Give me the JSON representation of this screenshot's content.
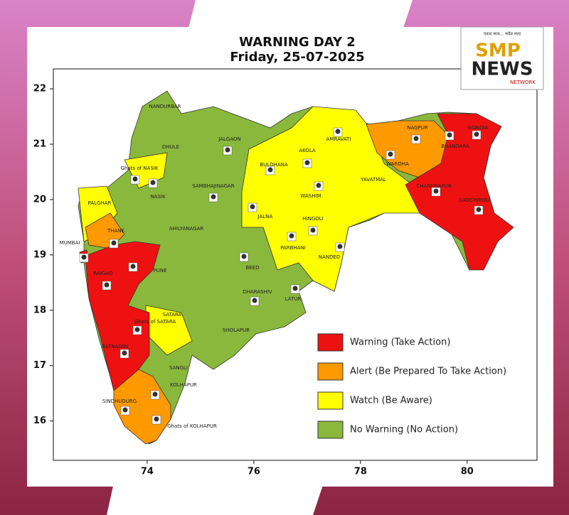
{
  "map": {
    "title": "WARNING DAY 2",
    "subtitle": "Friday, 25-07-2025",
    "xlim": [
      72.24,
      81.31
    ],
    "ylim": [
      15.29,
      22.36
    ],
    "xticks": [
      74,
      76,
      78,
      80
    ],
    "yticks": [
      16,
      17,
      18,
      19,
      20,
      21,
      22
    ],
    "legend": [
      {
        "label": "Warning (Take Action)",
        "color": "#ee1111"
      },
      {
        "label": "Alert (Be Prepared To Take Action)",
        "color": "#ff9900"
      },
      {
        "label": "Watch (Be Aware)",
        "color": "#ffff00"
      },
      {
        "label": "No Warning (No Action)",
        "color": "#8ab83c"
      }
    ],
    "districts": [
      "NANDURBAR",
      "DHULE",
      "JALGAON",
      "Ghats of NASIK",
      "NASIK",
      "PALGHAR",
      "THANE",
      "MUMBAI",
      "SAMBHAJINAGAR",
      "AHILYANAGAR",
      "PUNE",
      "RAIGAD",
      "BULDHANA",
      "AKOLA",
      "AMRAVATI",
      "NAGPUR",
      "WARDHA",
      "BHANDARA",
      "GONDIA",
      "WASHIM",
      "YAVATMAL",
      "CHANDRAPUR",
      "GADCHIROLI",
      "JALNA",
      "HINGOLI",
      "PARBHANI",
      "NANDED",
      "BEED",
      "DHARASHIV",
      "LATUR",
      "SATARA",
      "Ghats of SATARA",
      "SHOLAPUR",
      "RATNAGIRI",
      "SANGLI",
      "KOLHAPUR",
      "SINDHUDURG",
      "Ghats of KOLHAPUR"
    ],
    "logo": {
      "tagline": "एकच सत्य... सदैव सत्य",
      "brand1": "SMP",
      "brand2": "NEWS",
      "network": "NETWORK"
    }
  }
}
